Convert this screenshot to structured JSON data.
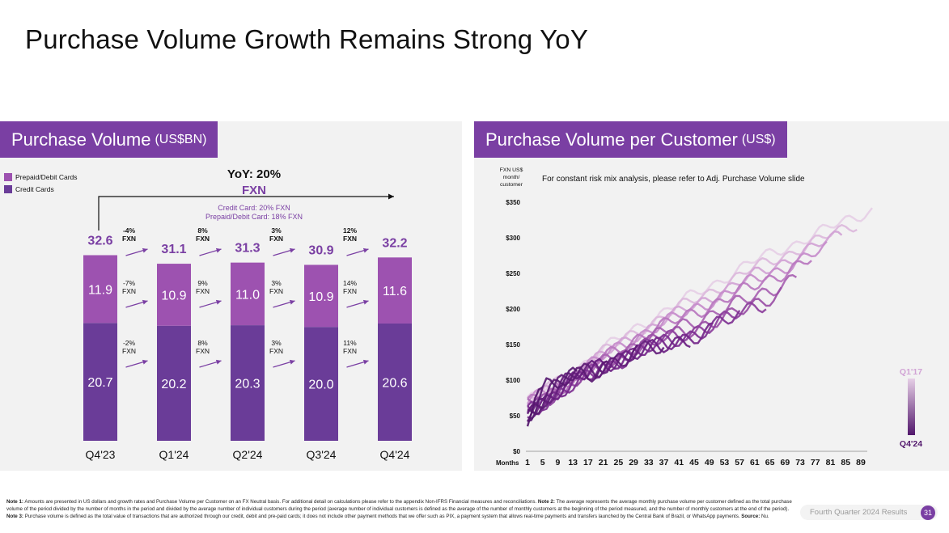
{
  "slide": {
    "title": "Purchase Volume Growth Remains Strong YoY",
    "footer_label": "Fourth Quarter 2024 Results",
    "page_number": "31",
    "footnote": {
      "note1_label": "Note 1:",
      "note1": " Amounts are presented in US dollars and growth rates and Purchase Volume per Customer on an FX Neutral basis. For additional detail on calculations please refer to the appendix Non-IFRS Financial measures and reconciliations. ",
      "note2_label": "Note 2:",
      "note2": " The average represents the average monthly purchase volume per customer defined as the total purchase volume of the period divided by the number of months in the period and divided by the average number of individual customers during the period (average number of individual customers is defined as the average of the number of monthly customers at the beginning of the period measured, and the number of monthly customers at the end of the period). ",
      "note3_label": "Note 3:",
      "note3": " Purchase volume is defined as the total value of transactions that are authorized through our credit, debit and pre-paid cards; it does not include other payment methods that we offer such as PIX, a payment system that allows real-time payments and transfers launched by the Central Bank of Brazil, or WhatsApp payments. ",
      "source_label": "Source:",
      "source": " Nu."
    }
  },
  "left_panel": {
    "title": "Purchase Volume",
    "unit": "(US$BN)"
  },
  "right_panel": {
    "title": "Purchase Volume per Customer",
    "unit": "(US$)"
  },
  "chart_data": [
    {
      "type": "bar",
      "stacked": true,
      "title": "Purchase Volume (US$BN)",
      "categories": [
        "Q4'23",
        "Q1'24",
        "Q2'24",
        "Q3'24",
        "Q4'24"
      ],
      "series": [
        {
          "name": "Credit Cards",
          "values": [
            20.7,
            20.2,
            20.3,
            20.0,
            20.6
          ],
          "color": "#6a3c98"
        },
        {
          "name": "Prepaid/Debit Cards",
          "values": [
            11.9,
            10.9,
            11.0,
            10.9,
            11.6
          ],
          "color": "#9d52b0"
        }
      ],
      "totals": [
        32.6,
        31.1,
        31.3,
        30.9,
        32.2
      ],
      "qoq_total": [
        [
          "-4%",
          "FXN"
        ],
        [
          "8%",
          "FXN"
        ],
        [
          "3%",
          "FXN"
        ],
        [
          "12%",
          "FXN"
        ]
      ],
      "qoq_prepaid": [
        [
          "-7%",
          "FXN"
        ],
        [
          "9%",
          "FXN"
        ],
        [
          "3%",
          "FXN"
        ],
        [
          "14%",
          "FXN"
        ]
      ],
      "qoq_credit": [
        [
          "-2%",
          "FXN"
        ],
        [
          "8%",
          "FXN"
        ],
        [
          "3%",
          "FXN"
        ],
        [
          "11%",
          "FXN"
        ]
      ],
      "yoy": {
        "label": "YoY: 20%",
        "fxn": "FXN",
        "credit": "Credit Card: 20% FXN",
        "prepaid": "Prepaid/Debit Card: 18% FXN"
      },
      "legend": [
        "Prepaid/Debit Cards",
        "Credit Cards"
      ],
      "colors": {
        "credit": "#6a3c98",
        "prepaid": "#9d52b0",
        "accent": "#7a3fa3"
      }
    },
    {
      "type": "line",
      "title": "Purchase Volume per Customer (US$)",
      "note": "For constant risk mix analysis, please refer to Adj. Purchase Volume slide",
      "ylabel": "FXN US$ month/ customer",
      "xlabel": "Months",
      "ylim": [
        0,
        350
      ],
      "yticks": [
        0,
        50,
        100,
        150,
        200,
        250,
        300,
        350
      ],
      "ytick_labels": [
        "$0",
        "$50",
        "$100",
        "$150",
        "$200",
        "$250",
        "$300",
        "$350"
      ],
      "xlim": [
        1,
        92
      ],
      "xticks": [
        1,
        5,
        9,
        13,
        17,
        21,
        25,
        29,
        33,
        37,
        41,
        45,
        49,
        53,
        57,
        61,
        65,
        69,
        73,
        77,
        81,
        85,
        89
      ],
      "cohort_legend": {
        "start": "Q1'17",
        "end": "Q4'24"
      },
      "series": [
        {
          "name": "Q1'17",
          "color": "#e6cfe6",
          "x": [
            1,
            30,
            60,
            92
          ],
          "y": [
            70,
            175,
            265,
            340
          ]
        },
        {
          "name": "Q3'17",
          "color": "#dcb8dc",
          "x": [
            1,
            30,
            60,
            88
          ],
          "y": [
            70,
            170,
            255,
            320
          ]
        },
        {
          "name": "Q1'18",
          "color": "#d1a3d5",
          "x": [
            1,
            30,
            60,
            84
          ],
          "y": [
            68,
            165,
            245,
            305
          ]
        },
        {
          "name": "Q3'18",
          "color": "#c68ccb",
          "x": [
            1,
            30,
            60,
            80
          ],
          "y": [
            68,
            162,
            238,
            285
          ]
        },
        {
          "name": "Q1'19",
          "color": "#b877bf",
          "x": [
            1,
            30,
            60,
            76
          ],
          "y": [
            65,
            160,
            230,
            270
          ]
        },
        {
          "name": "Q3'19",
          "color": "#a862b2",
          "x": [
            1,
            30,
            60,
            72
          ],
          "y": [
            64,
            152,
            215,
            245
          ]
        },
        {
          "name": "Q1'20",
          "color": "#9a4fa6",
          "x": [
            1,
            30,
            55,
            68
          ],
          "y": [
            62,
            148,
            190,
            225
          ]
        },
        {
          "name": "Q3'20",
          "color": "#8c3f9c",
          "x": [
            1,
            30,
            50,
            64
          ],
          "y": [
            60,
            145,
            178,
            210
          ]
        },
        {
          "name": "Q1'21",
          "color": "#7e3192",
          "x": [
            1,
            30,
            45,
            57
          ],
          "y": [
            58,
            140,
            165,
            190
          ]
        },
        {
          "name": "Q3'21",
          "color": "#74268a",
          "x": [
            1,
            25,
            40,
            50
          ],
          "y": [
            56,
            130,
            155,
            170
          ]
        },
        {
          "name": "Q1'22",
          "color": "#6b2183",
          "x": [
            1,
            20,
            35,
            44
          ],
          "y": [
            55,
            122,
            145,
            160
          ]
        },
        {
          "name": "Q3'22",
          "color": "#641d7c",
          "x": [
            1,
            15,
            28,
            37
          ],
          "y": [
            54,
            112,
            135,
            148
          ]
        },
        {
          "name": "Q1'23",
          "color": "#5e1b76",
          "x": [
            1,
            12,
            22,
            30
          ],
          "y": [
            52,
            105,
            122,
            135
          ]
        },
        {
          "name": "Q3'23",
          "color": "#5a1a72",
          "x": [
            1,
            10,
            18,
            22
          ],
          "y": [
            52,
            98,
            112,
            120
          ]
        },
        {
          "name": "Q1'24",
          "color": "#561970",
          "x": [
            1,
            6,
            11,
            14
          ],
          "y": [
            50,
            90,
            100,
            106
          ]
        },
        {
          "name": "Q4'24",
          "color": "#52176c",
          "x": [
            1,
            3,
            5
          ],
          "y": [
            50,
            70,
            80
          ]
        }
      ]
    }
  ]
}
